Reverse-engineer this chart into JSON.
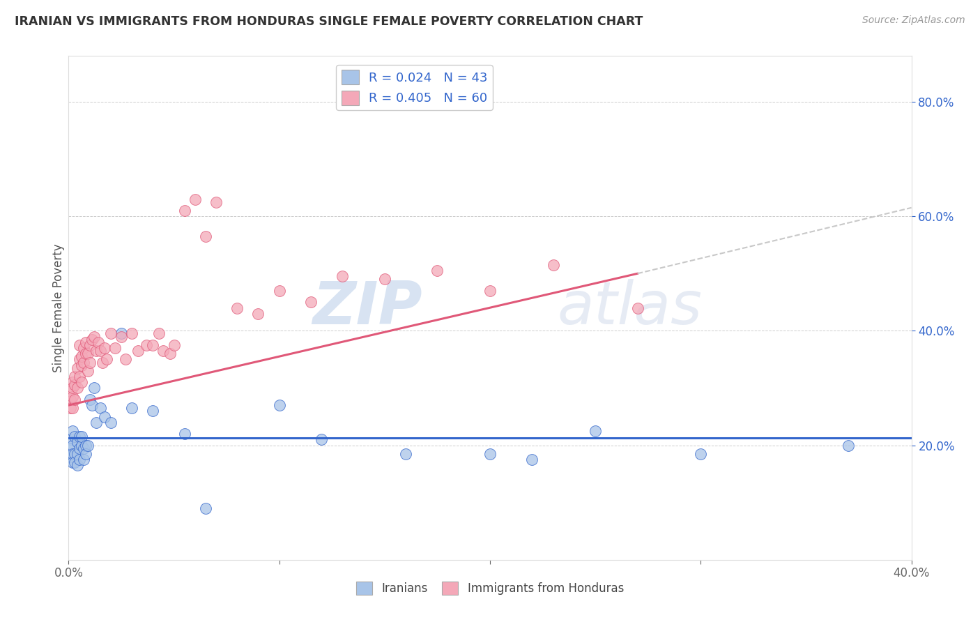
{
  "title": "IRANIAN VS IMMIGRANTS FROM HONDURAS SINGLE FEMALE POVERTY CORRELATION CHART",
  "source": "Source: ZipAtlas.com",
  "ylabel": "Single Female Poverty",
  "legend_label_1": "Iranians",
  "legend_label_2": "Immigrants from Honduras",
  "R1": 0.024,
  "N1": 43,
  "R2": 0.405,
  "N2": 60,
  "color1": "#a8c4e8",
  "color2": "#f4a8b8",
  "line1_color": "#3366cc",
  "line2_color": "#e05878",
  "trendline2_ext_color": "#c8c8c8",
  "xlim": [
    0.0,
    0.4
  ],
  "ylim": [
    0.0,
    0.88
  ],
  "yticks": [
    0.2,
    0.4,
    0.6,
    0.8
  ],
  "xtick_labels": [
    "0.0%",
    "40.0%"
  ],
  "xtick_positions": [
    0.0,
    0.4
  ],
  "background_color": "#ffffff",
  "watermark_zip": "ZIP",
  "watermark_atlas": "atlas",
  "iranians_x": [
    0.001,
    0.001,
    0.001,
    0.002,
    0.002,
    0.002,
    0.002,
    0.003,
    0.003,
    0.003,
    0.004,
    0.004,
    0.004,
    0.005,
    0.005,
    0.005,
    0.006,
    0.006,
    0.007,
    0.007,
    0.008,
    0.008,
    0.009,
    0.01,
    0.011,
    0.012,
    0.013,
    0.015,
    0.017,
    0.02,
    0.025,
    0.03,
    0.04,
    0.055,
    0.065,
    0.1,
    0.12,
    0.16,
    0.2,
    0.22,
    0.25,
    0.3,
    0.37
  ],
  "iranians_y": [
    0.21,
    0.195,
    0.18,
    0.225,
    0.2,
    0.185,
    0.17,
    0.215,
    0.185,
    0.17,
    0.205,
    0.185,
    0.165,
    0.215,
    0.195,
    0.175,
    0.2,
    0.215,
    0.195,
    0.175,
    0.2,
    0.185,
    0.2,
    0.28,
    0.27,
    0.3,
    0.24,
    0.265,
    0.25,
    0.24,
    0.395,
    0.265,
    0.26,
    0.22,
    0.09,
    0.27,
    0.21,
    0.185,
    0.185,
    0.175,
    0.225,
    0.185,
    0.2
  ],
  "honduras_x": [
    0.001,
    0.001,
    0.001,
    0.002,
    0.002,
    0.002,
    0.002,
    0.003,
    0.003,
    0.003,
    0.004,
    0.004,
    0.005,
    0.005,
    0.005,
    0.006,
    0.006,
    0.006,
    0.007,
    0.007,
    0.008,
    0.008,
    0.009,
    0.009,
    0.01,
    0.01,
    0.011,
    0.012,
    0.013,
    0.014,
    0.015,
    0.016,
    0.017,
    0.018,
    0.02,
    0.022,
    0.025,
    0.027,
    0.03,
    0.033,
    0.037,
    0.04,
    0.043,
    0.045,
    0.048,
    0.05,
    0.055,
    0.06,
    0.065,
    0.07,
    0.08,
    0.09,
    0.1,
    0.115,
    0.13,
    0.15,
    0.175,
    0.2,
    0.23,
    0.27
  ],
  "honduras_y": [
    0.28,
    0.265,
    0.295,
    0.31,
    0.285,
    0.3,
    0.265,
    0.305,
    0.28,
    0.32,
    0.335,
    0.3,
    0.32,
    0.35,
    0.375,
    0.31,
    0.34,
    0.355,
    0.37,
    0.345,
    0.36,
    0.38,
    0.33,
    0.36,
    0.345,
    0.375,
    0.385,
    0.39,
    0.365,
    0.38,
    0.365,
    0.345,
    0.37,
    0.35,
    0.395,
    0.37,
    0.39,
    0.35,
    0.395,
    0.365,
    0.375,
    0.375,
    0.395,
    0.365,
    0.36,
    0.375,
    0.61,
    0.63,
    0.565,
    0.625,
    0.44,
    0.43,
    0.47,
    0.45,
    0.495,
    0.49,
    0.505,
    0.47,
    0.515,
    0.44
  ],
  "iran_trend_y0": 0.213,
  "iran_trend_y1": 0.213,
  "hond_trend_x0": 0.0,
  "hond_trend_y0": 0.27,
  "hond_trend_x1": 0.27,
  "hond_trend_y1": 0.5,
  "hond_trend_ext_x0": 0.27,
  "hond_trend_ext_y0": 0.5,
  "hond_trend_ext_x1": 0.4,
  "hond_trend_ext_y1": 0.615
}
